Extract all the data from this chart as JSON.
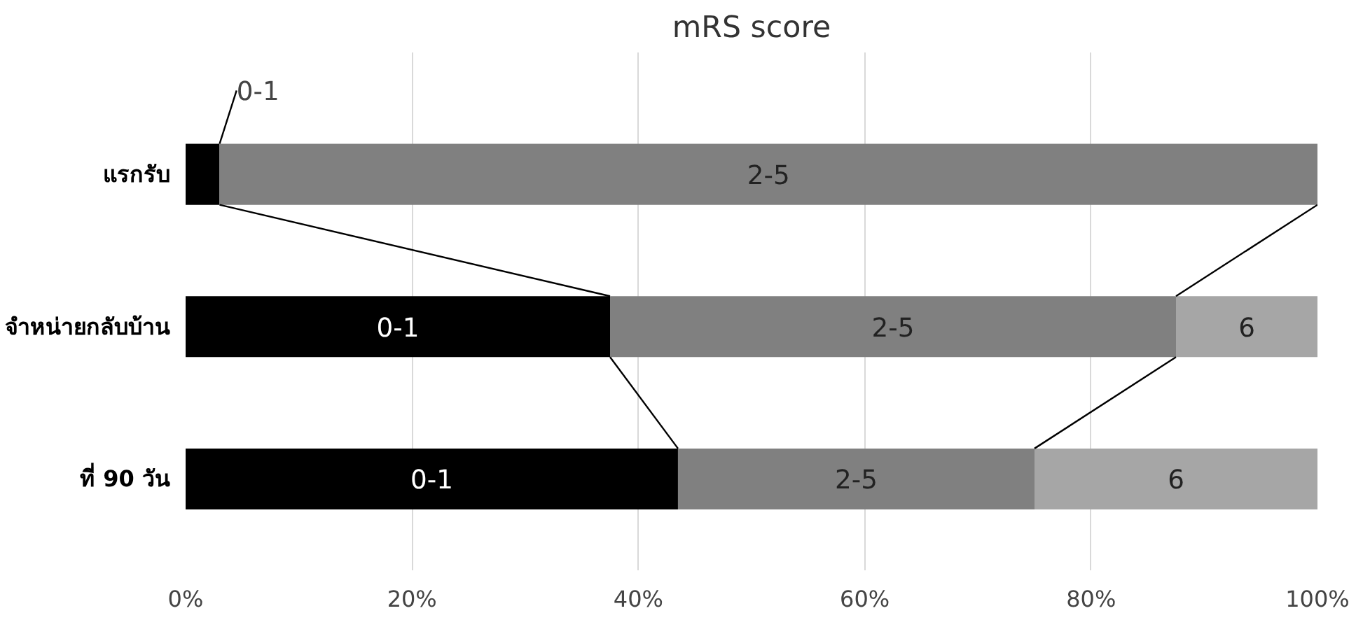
{
  "chart_data": {
    "type": "bar",
    "orientation": "horizontal",
    "stacked": true,
    "title": "mRS score",
    "categories": [
      "แรกรับ",
      "จำหน่ายกลับบ้าน",
      "ที่ 90 วัน"
    ],
    "series": [
      {
        "name": "0-1",
        "color": "#000000",
        "values": [
          3,
          37.5,
          43.5
        ]
      },
      {
        "name": "2-5",
        "color": "#808080",
        "values": [
          97,
          50,
          31.5
        ]
      },
      {
        "name": "6",
        "color": "#a6a6a6",
        "values": [
          0,
          12.5,
          25
        ]
      }
    ],
    "xlim": [
      0,
      100
    ],
    "xticks": [
      {
        "value": 0,
        "label": "0%"
      },
      {
        "value": 20,
        "label": "20%"
      },
      {
        "value": 40,
        "label": "40%"
      },
      {
        "value": 60,
        "label": "60%"
      },
      {
        "value": 80,
        "label": "80%"
      },
      {
        "value": 100,
        "label": "100%"
      }
    ],
    "grid": "x"
  }
}
